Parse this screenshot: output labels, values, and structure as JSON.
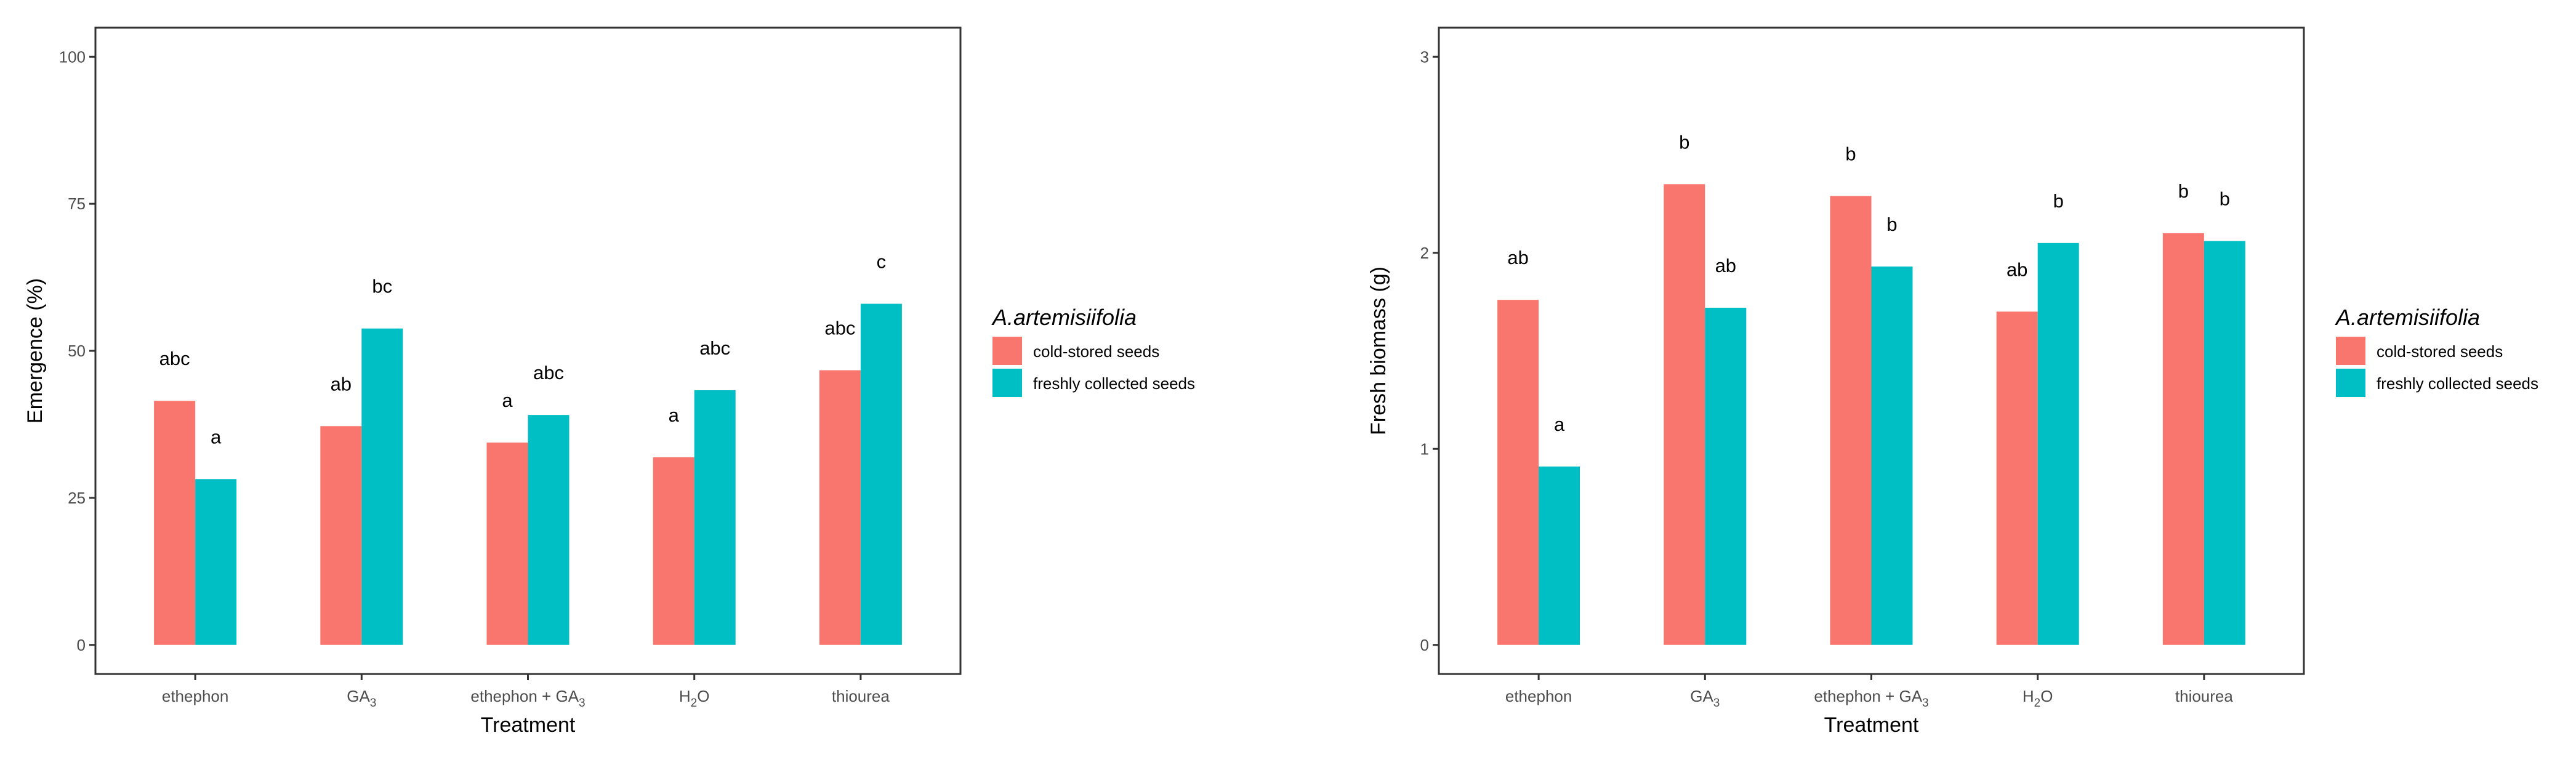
{
  "colors": {
    "cold_stored": "#F8766D",
    "freshly_collected": "#00BFC4",
    "tick_text": "#4d4d4d",
    "panel_border": "#333333"
  },
  "chart_data": [
    {
      "type": "bar",
      "title": "",
      "xlabel": "Treatment",
      "ylabel": "Emergence (%)",
      "ylim": [
        0,
        100
      ],
      "yticks": [
        "0",
        "25",
        "50",
        "75",
        "100"
      ],
      "ytick_values": [
        0,
        25,
        50,
        75,
        100
      ],
      "grid": false,
      "categories": [
        {
          "label": "ethephon"
        },
        {
          "label": "GA",
          "sub": "3"
        },
        {
          "label": "ethephon + GA",
          "sub": "3"
        },
        {
          "label": "H",
          "sub": "2",
          "suffix": "O"
        },
        {
          "label": "thiourea"
        }
      ],
      "legend": {
        "title": "A.artemisiifolia",
        "position": "right",
        "entries": [
          "cold-stored seeds",
          "freshly collected seeds"
        ]
      },
      "series": [
        {
          "name": "cold-stored seeds",
          "values": [
            41.5,
            37.2,
            34.4,
            31.9,
            46.7
          ],
          "letters": [
            "abc",
            "ab",
            "a",
            "a",
            "abc"
          ]
        },
        {
          "name": "freshly collected seeds",
          "values": [
            28.2,
            53.8,
            39.1,
            43.3,
            58.0
          ],
          "letters": [
            "a",
            "bc",
            "abc",
            "abc",
            "c"
          ]
        }
      ]
    },
    {
      "type": "bar",
      "title": "",
      "xlabel": "Treatment",
      "ylabel": "Fresh biomass (g)",
      "ylim": [
        0,
        3
      ],
      "yticks": [
        "0",
        "1",
        "2",
        "3"
      ],
      "ytick_values": [
        0,
        1,
        2,
        3
      ],
      "grid": false,
      "categories": [
        {
          "label": "ethephon"
        },
        {
          "label": "GA",
          "sub": "3"
        },
        {
          "label": "ethephon + GA",
          "sub": "3"
        },
        {
          "label": "H",
          "sub": "2",
          "suffix": "O"
        },
        {
          "label": "thiourea"
        }
      ],
      "legend": {
        "title": "A.artemisiifolia",
        "position": "right",
        "entries": [
          "cold-stored seeds",
          "freshly collected seeds"
        ]
      },
      "series": [
        {
          "name": "cold-stored seeds",
          "values": [
            1.76,
            2.35,
            2.29,
            1.7,
            2.1
          ],
          "letters": [
            "ab",
            "b",
            "b",
            "ab",
            "b"
          ]
        },
        {
          "name": "freshly collected seeds",
          "values": [
            0.91,
            1.72,
            1.93,
            2.05,
            2.06
          ],
          "letters": [
            "a",
            "ab",
            "b",
            "b",
            "b"
          ]
        }
      ]
    }
  ]
}
